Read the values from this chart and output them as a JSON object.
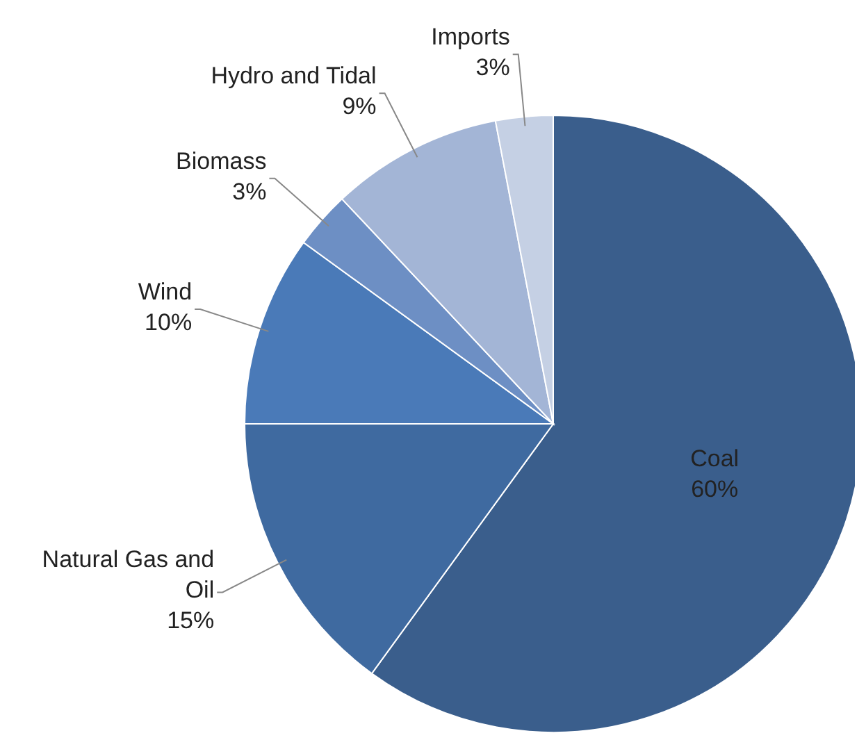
{
  "chart_data": {
    "type": "pie",
    "categories": [
      "Coal",
      "Natural Gas and Oil",
      "Wind",
      "Biomass",
      "Hydro and Tidal",
      "Imports"
    ],
    "values": [
      60,
      15,
      10,
      3,
      9,
      3
    ],
    "value_labels": [
      "60%",
      "15%",
      "10%",
      "3%",
      "9%",
      "3%"
    ],
    "colors": [
      "#3a5e8c",
      "#3f6aa0",
      "#4a7ab8",
      "#6d8fc4",
      "#a3b5d6",
      "#c5d0e4"
    ],
    "legend": false
  }
}
